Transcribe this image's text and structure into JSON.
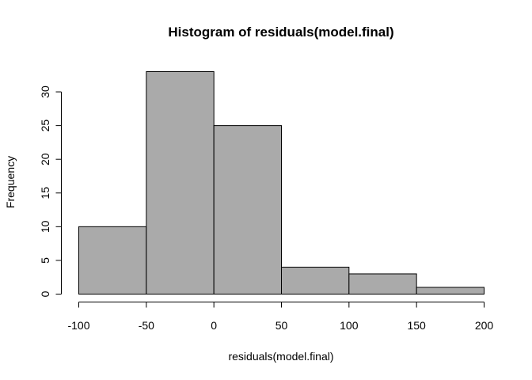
{
  "chart_data": {
    "type": "bar",
    "title": "Histogram of residuals(model.final)",
    "xlabel": "residuals(model.final)",
    "ylabel": "Frequency",
    "bins": [
      {
        "start": -100,
        "end": -50,
        "count": 10
      },
      {
        "start": -50,
        "end": 0,
        "count": 33
      },
      {
        "start": 0,
        "end": 50,
        "count": 25
      },
      {
        "start": 50,
        "end": 100,
        "count": 4
      },
      {
        "start": 100,
        "end": 150,
        "count": 3
      },
      {
        "start": 150,
        "end": 200,
        "count": 1
      }
    ],
    "xlim": [
      -100,
      200
    ],
    "ylim": [
      0,
      33
    ],
    "x_ticks": [
      "-100",
      "-50",
      "0",
      "50",
      "100",
      "150",
      "200"
    ],
    "y_ticks": [
      "0",
      "5",
      "10",
      "15",
      "20",
      "25",
      "30"
    ],
    "bar_color": "#aaaaaa",
    "grid": false
  }
}
